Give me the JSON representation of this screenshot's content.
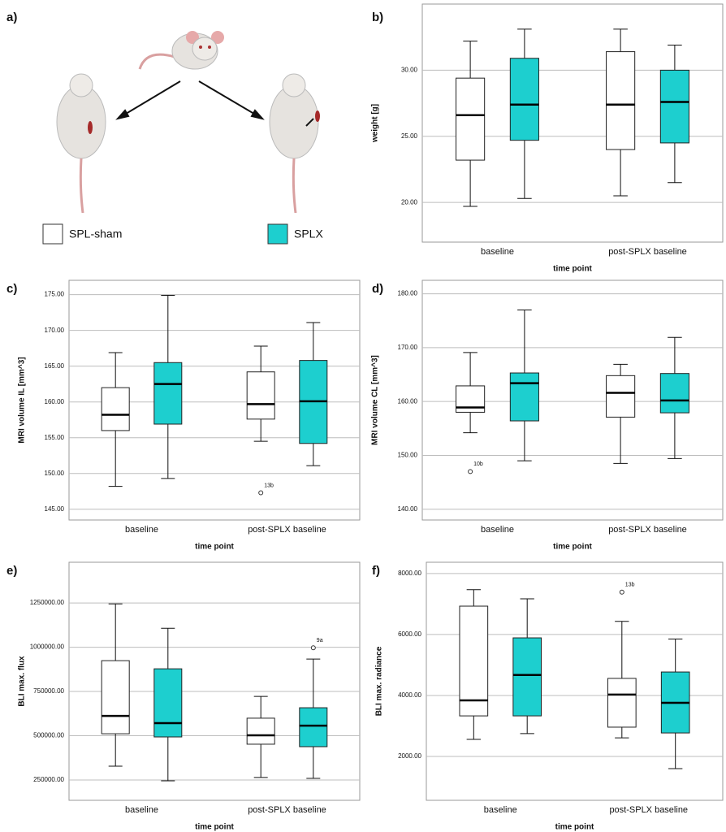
{
  "diagram": {
    "label": "a)",
    "legend": [
      {
        "name": "SPL-sham",
        "color": "#ffffff"
      },
      {
        "name": "SPLX",
        "color": "#1dcfcf"
      }
    ]
  },
  "chart_data": [
    {
      "type": "box",
      "label": "b)",
      "ylabel": "weight [g]",
      "xlabel": "time point",
      "categories": [
        "baseline",
        "post-SPLX baseline"
      ],
      "ylim": [
        17,
        35
      ],
      "yticks": [
        {
          "value": 20,
          "label": "20.00"
        },
        {
          "value": 25,
          "label": "25.00"
        },
        {
          "value": 30,
          "label": "30.00"
        }
      ],
      "grid": true,
      "series": [
        {
          "color": "#ffffff",
          "values": [
            {
              "min": 19.7,
              "q1": 23.2,
              "median": 26.6,
              "q3": 29.4,
              "max": 32.2
            },
            {
              "min": 20.5,
              "q1": 24.0,
              "median": 27.4,
              "q3": 31.4,
              "max": 33.1
            }
          ]
        },
        {
          "color": "#1dcfcf",
          "values": [
            {
              "min": 20.3,
              "q1": 24.7,
              "median": 27.4,
              "q3": 30.9,
              "max": 33.1
            },
            {
              "min": 21.5,
              "q1": 24.5,
              "median": 27.6,
              "q3": 30.0,
              "max": 31.9
            }
          ]
        }
      ]
    },
    {
      "type": "box",
      "label": "c)",
      "ylabel": "MRI volume IL [mm^3]",
      "xlabel": "time point",
      "categories": [
        "baseline",
        "post-SPLX baseline"
      ],
      "ylim": [
        143.5,
        177
      ],
      "yticks": [
        {
          "value": 145,
          "label": "145.00"
        },
        {
          "value": 150,
          "label": "150.00"
        },
        {
          "value": 155,
          "label": "155.00"
        },
        {
          "value": 160,
          "label": "160.00"
        },
        {
          "value": 165,
          "label": "165.00"
        },
        {
          "value": 170,
          "label": "170.00"
        },
        {
          "value": 175,
          "label": "175.00"
        }
      ],
      "grid": true,
      "series": [
        {
          "color": "#ffffff",
          "values": [
            {
              "min": 148.2,
              "q1": 156.0,
              "median": 158.2,
              "q3": 162.0,
              "max": 166.9
            },
            {
              "min": 154.5,
              "q1": 157.6,
              "median": 159.7,
              "q3": 164.2,
              "max": 167.8,
              "outliers": [
                {
                  "value": 147.3,
                  "label": "13b"
                }
              ]
            }
          ]
        },
        {
          "color": "#1dcfcf",
          "values": [
            {
              "min": 149.3,
              "q1": 156.9,
              "median": 162.5,
              "q3": 165.5,
              "max": 174.9
            },
            {
              "min": 151.1,
              "q1": 154.2,
              "median": 160.1,
              "q3": 165.8,
              "max": 171.1
            }
          ]
        }
      ]
    },
    {
      "type": "box",
      "label": "d)",
      "ylabel": "MRI volume CL [mm^3]",
      "xlabel": "time point",
      "categories": [
        "baseline",
        "post-SPLX baseline"
      ],
      "ylim": [
        138,
        182.5
      ],
      "yticks": [
        {
          "value": 140,
          "label": "140.00"
        },
        {
          "value": 150,
          "label": "150.00"
        },
        {
          "value": 160,
          "label": "160.00"
        },
        {
          "value": 170,
          "label": "170.00"
        },
        {
          "value": 180,
          "label": "180.00"
        }
      ],
      "grid": true,
      "series": [
        {
          "color": "#ffffff",
          "values": [
            {
              "min": 154.2,
              "q1": 158.0,
              "median": 158.9,
              "q3": 162.9,
              "max": 169.1,
              "outliers": [
                {
                  "value": 147.0,
                  "label": "10b"
                }
              ]
            },
            {
              "min": 148.5,
              "q1": 157.1,
              "median": 161.6,
              "q3": 164.8,
              "max": 166.9
            }
          ]
        },
        {
          "color": "#1dcfcf",
          "values": [
            {
              "min": 149.0,
              "q1": 156.4,
              "median": 163.4,
              "q3": 165.3,
              "max": 177.0
            },
            {
              "min": 149.4,
              "q1": 157.9,
              "median": 160.2,
              "q3": 165.2,
              "max": 171.9
            }
          ]
        }
      ]
    },
    {
      "type": "box",
      "label": "e)",
      "ylabel": "BLI max. flux",
      "xlabel": "time point",
      "categories": [
        "baseline",
        "post-SPLX baseline"
      ],
      "ylim": [
        135000,
        1480000
      ],
      "yticks": [
        {
          "value": 250000,
          "label": "250000.00"
        },
        {
          "value": 500000,
          "label": "500000.00"
        },
        {
          "value": 750000,
          "label": "750000.00"
        },
        {
          "value": 1000000,
          "label": "1000000.00"
        },
        {
          "value": 1250000,
          "label": "1250000.00"
        }
      ],
      "grid": true,
      "series": [
        {
          "color": "#ffffff",
          "values": [
            {
              "min": 328000,
              "q1": 511000,
              "median": 612000,
              "q3": 924000,
              "max": 1245000
            },
            {
              "min": 264000,
              "q1": 452000,
              "median": 502000,
              "q3": 599000,
              "max": 722000
            }
          ]
        },
        {
          "color": "#1dcfcf",
          "values": [
            {
              "min": 245000,
              "q1": 493000,
              "median": 571000,
              "q3": 878000,
              "max": 1107000
            },
            {
              "min": 259000,
              "q1": 438000,
              "median": 557000,
              "q3": 658000,
              "max": 933000,
              "outliers": [
                {
                  "value": 997000,
                  "label": "9a"
                }
              ]
            }
          ]
        }
      ]
    },
    {
      "type": "box",
      "label": "f)",
      "ylabel": "BLI max. radiance",
      "xlabel": "time point",
      "categories": [
        "baseline",
        "post-SPLX baseline"
      ],
      "ylim": [
        560,
        8370
      ],
      "yticks": [
        {
          "value": 2000,
          "label": "2000.00"
        },
        {
          "value": 4000,
          "label": "4000.00"
        },
        {
          "value": 6000,
          "label": "6000.00"
        },
        {
          "value": 8000,
          "label": "8000.00"
        }
      ],
      "grid": true,
      "series": [
        {
          "color": "#ffffff",
          "values": [
            {
              "min": 2560,
              "q1": 3330,
              "median": 3840,
              "q3": 6930,
              "max": 7470
            },
            {
              "min": 2610,
              "q1": 2960,
              "median": 4030,
              "q3": 4560,
              "max": 6430,
              "outliers": [
                {
                  "value": 7390,
                  "label": "13b"
                }
              ]
            }
          ]
        },
        {
          "color": "#1dcfcf",
          "values": [
            {
              "min": 2750,
              "q1": 3330,
              "median": 4670,
              "q3": 5890,
              "max": 7170
            },
            {
              "min": 1600,
              "q1": 2770,
              "median": 3760,
              "q3": 4770,
              "max": 5850
            }
          ]
        }
      ]
    }
  ]
}
